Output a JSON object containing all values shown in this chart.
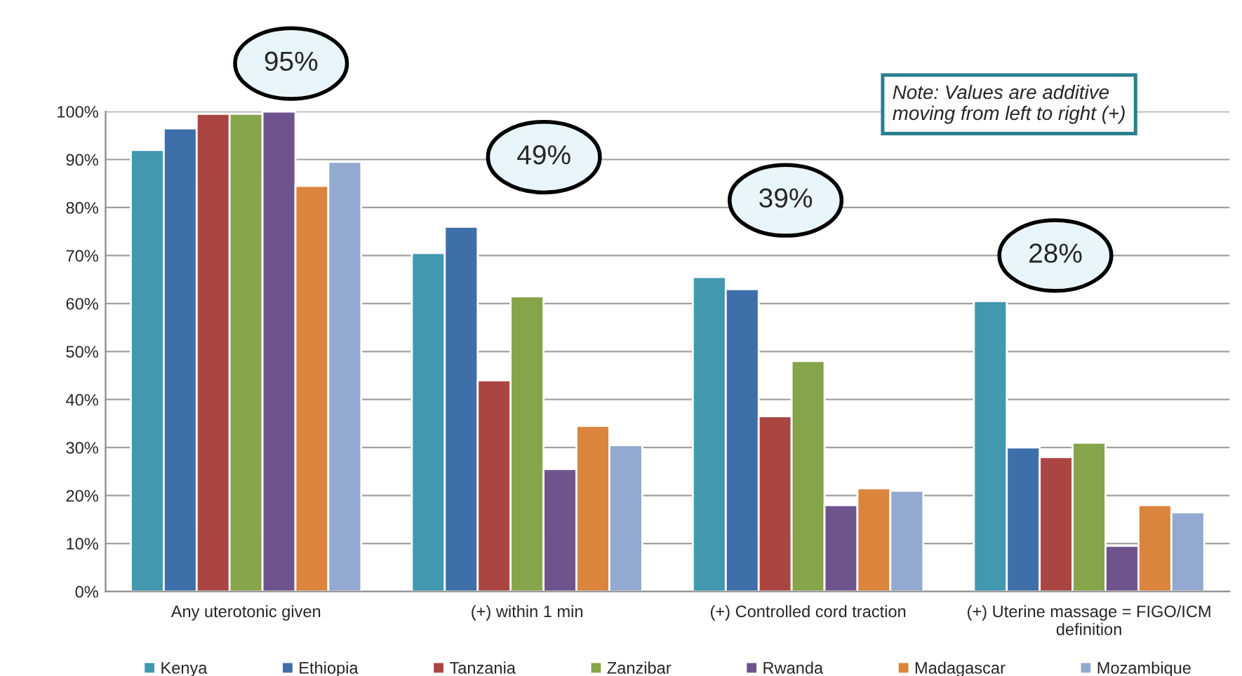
{
  "chart_data": {
    "type": "bar",
    "categories": [
      "Any uterotonic given",
      "(+) within 1 min",
      "(+) Controlled cord traction",
      "(+) Uterine massage = FIGO/ICM\ndefinition"
    ],
    "series": [
      {
        "name": "Kenya",
        "color": "#4198af",
        "values": [
          92,
          70.5,
          65.5,
          60.5
        ]
      },
      {
        "name": "Ethiopia",
        "color": "#3f6fa8",
        "values": [
          96.5,
          76,
          63,
          30
        ]
      },
      {
        "name": "Tanzania",
        "color": "#ab4542",
        "values": [
          99.5,
          44,
          36.5,
          28
        ]
      },
      {
        "name": "Zanzibar",
        "color": "#86a44a",
        "values": [
          99.5,
          61.5,
          48,
          31
        ]
      },
      {
        "name": "Rwanda",
        "color": "#6e548d",
        "values": [
          100,
          25.5,
          18,
          9.5
        ]
      },
      {
        "name": "Madagascar",
        "color": "#db843d",
        "values": [
          84.5,
          34.5,
          21.5,
          18
        ]
      },
      {
        "name": "Mozambique",
        "color": "#93a9cf",
        "values": [
          89.5,
          30.5,
          21,
          16.5
        ]
      }
    ],
    "ylim": [
      0,
      100
    ],
    "yticks": [
      {
        "value": 0,
        "label": "0%"
      },
      {
        "value": 10,
        "label": "10%"
      },
      {
        "value": 20,
        "label": "20%"
      },
      {
        "value": 30,
        "label": "30%"
      },
      {
        "value": 40,
        "label": "40%"
      },
      {
        "value": 50,
        "label": "50%"
      },
      {
        "value": 60,
        "label": "60%"
      },
      {
        "value": 70,
        "label": "70%"
      },
      {
        "value": 80,
        "label": "80%"
      },
      {
        "value": 90,
        "label": "90%"
      },
      {
        "value": 100,
        "label": "100%"
      }
    ],
    "grid": "y",
    "legend": "bottom",
    "annotations": [
      "95%",
      "49%",
      "39%",
      "28%",
      "Note: Values are additive\nmoving from left to right (+)"
    ]
  }
}
